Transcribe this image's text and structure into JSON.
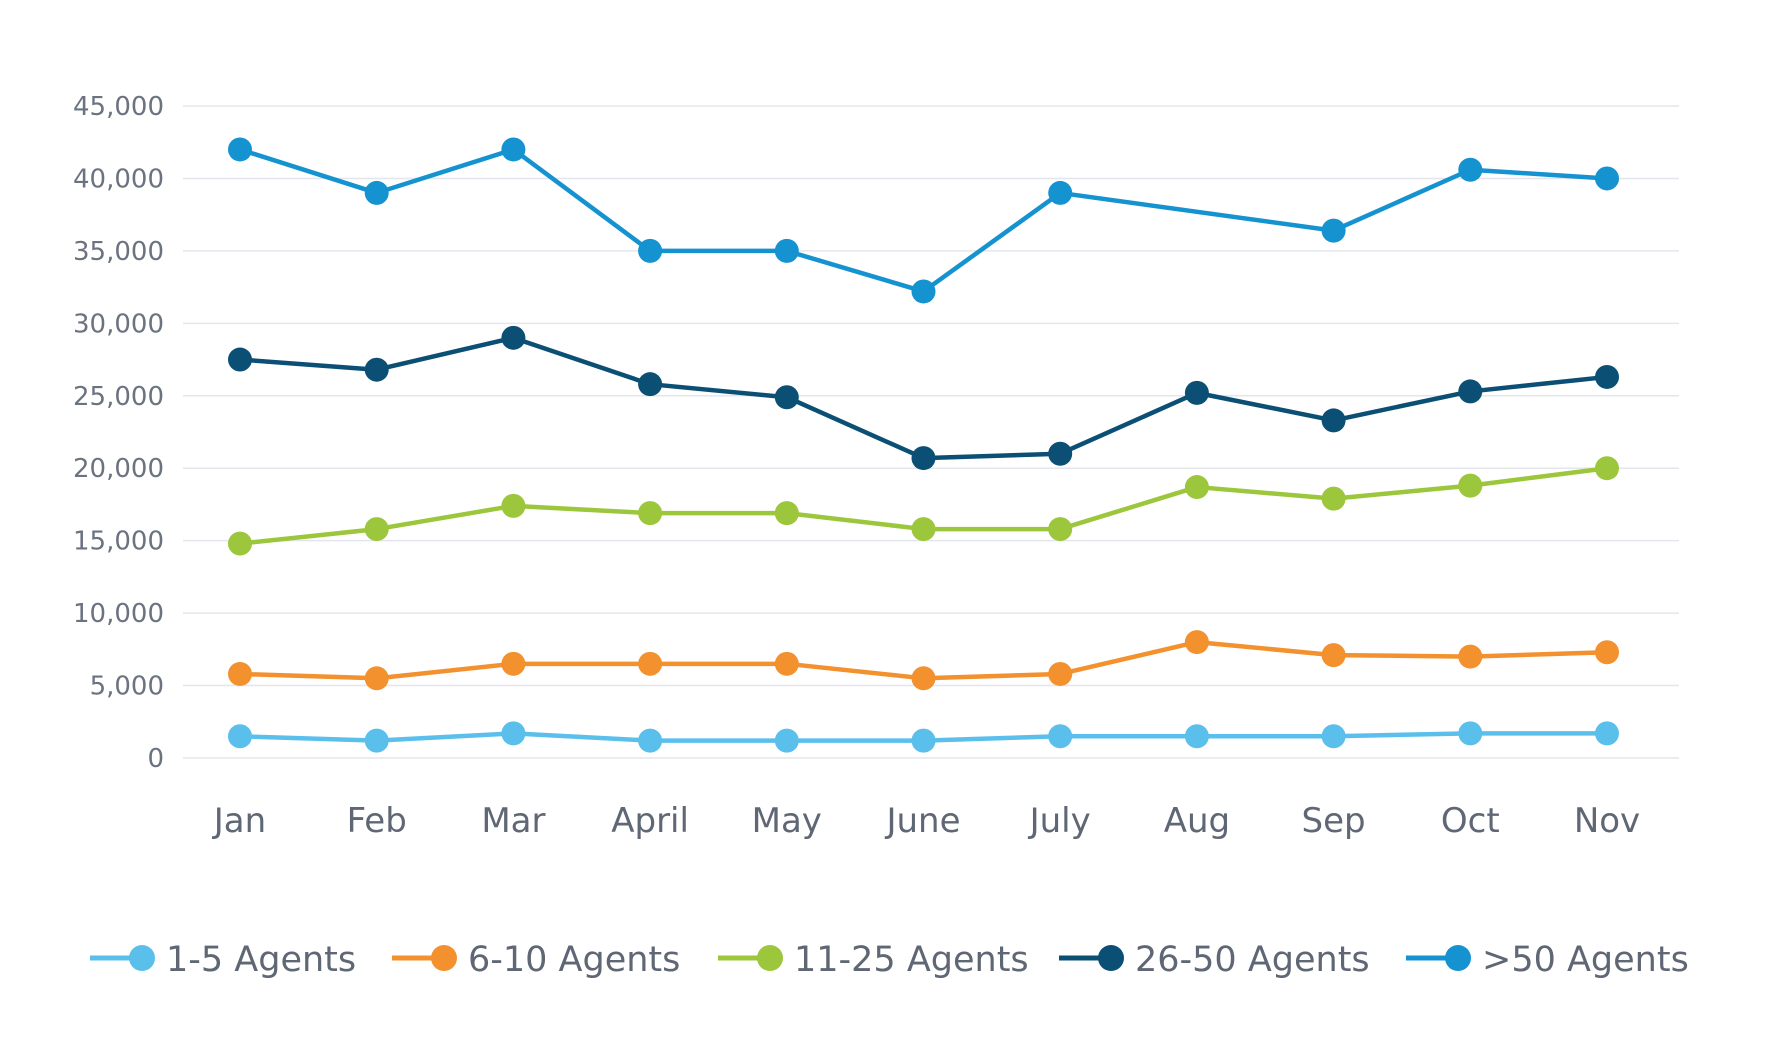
{
  "chart_data": {
    "type": "line",
    "title": "",
    "xlabel": "",
    "ylabel": "",
    "categories": [
      "Jan",
      "Feb",
      "Mar",
      "April",
      "May",
      "June",
      "July",
      "Aug",
      "Sep",
      "Oct",
      "Nov"
    ],
    "ylim": [
      0,
      45000
    ],
    "yticks": [
      0,
      5000,
      10000,
      15000,
      20000,
      25000,
      30000,
      35000,
      40000,
      45000
    ],
    "ytick_labels": [
      "0",
      "5,000",
      "10,000",
      "15,000",
      "20,000",
      "25,000",
      "30,000",
      "35,000",
      "40,000",
      "45,000"
    ],
    "grid": "horizontal",
    "legend_position": "bottom",
    "series": [
      {
        "name": "1-5 Agents",
        "color": "#5bbfec",
        "values": [
          1500,
          1200,
          1700,
          1200,
          1200,
          1200,
          1500,
          1500,
          1500,
          1700,
          1700
        ]
      },
      {
        "name": "6-10 Agents",
        "color": "#f3912f",
        "values": [
          5800,
          5500,
          6500,
          6500,
          6500,
          5500,
          5800,
          8000,
          7100,
          7000,
          7300
        ]
      },
      {
        "name": "11-25 Agents",
        "color": "#9cc63b",
        "values": [
          14800,
          15800,
          17400,
          16900,
          16900,
          15800,
          15800,
          18700,
          17900,
          18800,
          20000
        ]
      },
      {
        "name": "26-50 Agents",
        "color": "#0b4f75",
        "values": [
          27500,
          26800,
          29000,
          25800,
          24900,
          20700,
          21000,
          25200,
          23300,
          25300,
          26300
        ]
      },
      {
        "name": ">50 Agents",
        "color": "#1592d0",
        "values": [
          42000,
          39000,
          42000,
          35000,
          35000,
          32200,
          39000,
          null,
          36400,
          40600,
          40000
        ]
      }
    ]
  }
}
